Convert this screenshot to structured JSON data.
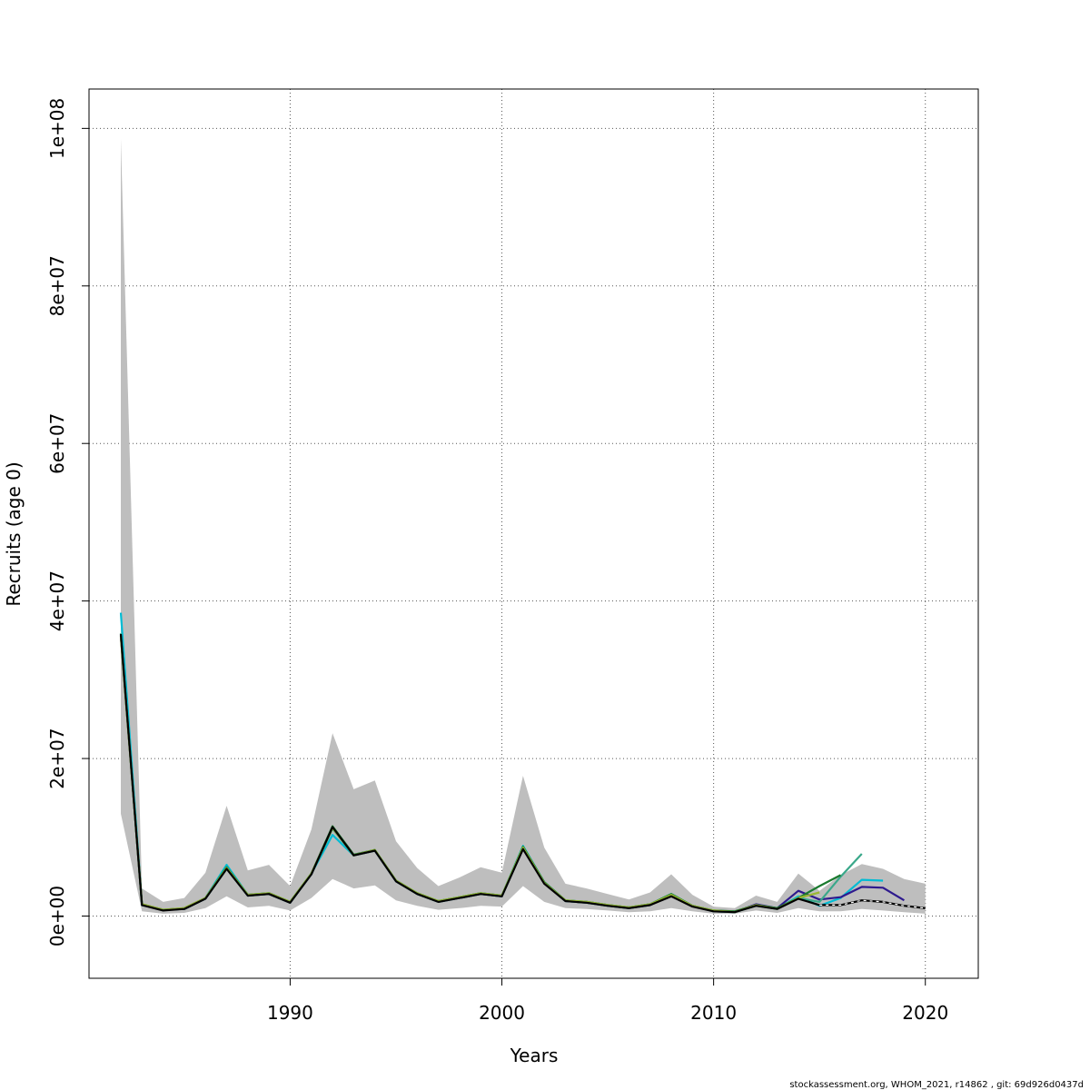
{
  "chart_data": {
    "type": "line",
    "xlabel": "Years",
    "ylabel": "Recruits (age 0)",
    "xlim": [
      1980.5,
      2022.5
    ],
    "ylim": [
      -7900000,
      105000000
    ],
    "x_ticks": [
      1990,
      2000,
      2010,
      2020
    ],
    "x_tick_labels": [
      "1990",
      "2000",
      "2010",
      "2020"
    ],
    "y_ticks": [
      0,
      20000000,
      40000000,
      60000000,
      80000000,
      100000000
    ],
    "y_tick_labels": [
      "0e+00",
      "2e+07",
      "4e+07",
      "6e+07",
      "8e+07",
      "1e+08"
    ],
    "grid": true,
    "confidence_band": {
      "x": [
        1982,
        1983,
        1984,
        1985,
        1986,
        1987,
        1988,
        1989,
        1990,
        1991,
        1992,
        1993,
        1994,
        1995,
        1996,
        1997,
        1998,
        1999,
        2000,
        2001,
        2002,
        2003,
        2004,
        2005,
        2006,
        2007,
        2008,
        2009,
        2010,
        2011,
        2012,
        2013,
        2014,
        2015,
        2016,
        2017,
        2018,
        2019,
        2020
      ],
      "lower": [
        13000000,
        600000,
        300000,
        400000,
        1000000,
        2500000,
        1100000,
        1300000,
        700000,
        2300000,
        4700000,
        3500000,
        3900000,
        2000000,
        1300000,
        800000,
        1000000,
        1300000,
        1200000,
        3800000,
        1800000,
        1000000,
        900000,
        700000,
        500000,
        600000,
        1000000,
        600000,
        300000,
        300000,
        700000,
        400000,
        1000000,
        600000,
        600000,
        900000,
        700000,
        500000,
        300000
      ],
      "upper": [
        98700000,
        3500000,
        1800000,
        2300000,
        5500000,
        14000000,
        5800000,
        6500000,
        3800000,
        11000000,
        23200000,
        16100000,
        17200000,
        9500000,
        6100000,
        3800000,
        4900000,
        6200000,
        5500000,
        17800000,
        8700000,
        4100000,
        3500000,
        2800000,
        2100000,
        3000000,
        5300000,
        2700000,
        1200000,
        1000000,
        2600000,
        1800000,
        5400000,
        3200000,
        5200000,
        6600000,
        6000000,
        4700000,
        4100000
      ]
    },
    "series": [
      {
        "color": "#000000",
        "x": [
          1982,
          1983,
          1984,
          1985,
          1986,
          1987,
          1988,
          1989,
          1990,
          1991,
          1992,
          1993,
          1994,
          1995,
          1996,
          1997,
          1998,
          1999,
          2000,
          2001,
          2002,
          2003,
          2004,
          2005,
          2006,
          2007,
          2008,
          2009,
          2010,
          2011,
          2012,
          2013,
          2014,
          2015,
          2016,
          2017,
          2018,
          2019,
          2020
        ],
        "y": [
          35800000,
          1400000,
          700000,
          900000,
          2200000,
          6000000,
          2600000,
          2800000,
          1700000,
          5300000,
          11300000,
          7700000,
          8300000,
          4400000,
          2800000,
          1800000,
          2300000,
          2800000,
          2500000,
          8500000,
          4100000,
          1900000,
          1700000,
          1300000,
          1000000,
          1400000,
          2500000,
          1200000,
          600000,
          500000,
          1300000,
          900000,
          2200000,
          1400000,
          1400000,
          2000000,
          1800000,
          1300000,
          1000000
        ]
      },
      {
        "color": "#00bcd4",
        "x": [
          1982,
          1983,
          1984,
          1985,
          1986,
          1987,
          1988,
          1989,
          1990,
          1991,
          1992,
          1993,
          1994,
          1995,
          1996,
          1997,
          1998,
          1999,
          2000,
          2001,
          2002,
          2003,
          2004,
          2005,
          2006,
          2007,
          2008,
          2009,
          2010,
          2011,
          2012,
          2013,
          2014,
          2015,
          2016,
          2017,
          2018
        ],
        "y": [
          38500000,
          1400000,
          800000,
          900000,
          2300000,
          6500000,
          2700000,
          2900000,
          1800000,
          5400000,
          10300000,
          7700000,
          8400000,
          4500000,
          2900000,
          1900000,
          2400000,
          2900000,
          2600000,
          8900000,
          4300000,
          2000000,
          1800000,
          1400000,
          1100000,
          1500000,
          2800000,
          1300000,
          700000,
          500000,
          1400000,
          900000,
          2500000,
          1300000,
          2300000,
          4600000,
          4500000
        ]
      },
      {
        "color": "#2e1a8e",
        "x": [
          1982,
          1983,
          1984,
          1985,
          1986,
          1987,
          1988,
          1989,
          1990,
          1991,
          1992,
          1993,
          1994,
          1995,
          1996,
          1997,
          1998,
          1999,
          2000,
          2001,
          2002,
          2003,
          2004,
          2005,
          2006,
          2007,
          2008,
          2009,
          2010,
          2011,
          2012,
          2013,
          2014,
          2015,
          2016,
          2017,
          2018,
          2019
        ],
        "y": [
          35700000,
          1400000,
          800000,
          900000,
          2200000,
          6100000,
          2600000,
          2800000,
          1700000,
          5300000,
          11200000,
          7700000,
          8300000,
          4400000,
          2800000,
          1800000,
          2300000,
          2800000,
          2500000,
          8600000,
          4200000,
          1900000,
          1700000,
          1300000,
          1000000,
          1400000,
          2600000,
          1300000,
          600000,
          500000,
          1500000,
          1000000,
          3200000,
          2100000,
          2400000,
          3700000,
          3600000,
          2000000
        ]
      },
      {
        "color": "#3aa88a",
        "x": [
          1982,
          1983,
          1984,
          1985,
          1986,
          1987,
          1988,
          1989,
          1990,
          1991,
          1992,
          1993,
          1994,
          1995,
          1996,
          1997,
          1998,
          1999,
          2000,
          2001,
          2002,
          2003,
          2004,
          2005,
          2006,
          2007,
          2008,
          2009,
          2010,
          2011,
          2012,
          2013,
          2014,
          2015,
          2016,
          2017
        ],
        "y": [
          35900000,
          1400000,
          800000,
          900000,
          2200000,
          6000000,
          2600000,
          2800000,
          1700000,
          5300000,
          11100000,
          7700000,
          8300000,
          4400000,
          2800000,
          1800000,
          2300000,
          2800000,
          2500000,
          8600000,
          4200000,
          1900000,
          1700000,
          1300000,
          1000000,
          1400000,
          2700000,
          1300000,
          600000,
          500000,
          1300000,
          900000,
          2300000,
          1800000,
          5000000,
          7900000
        ]
      },
      {
        "color": "#1a7a2e",
        "x": [
          1982,
          1983,
          1984,
          1985,
          1986,
          1987,
          1988,
          1989,
          1990,
          1991,
          1992,
          1993,
          1994,
          1995,
          1996,
          1997,
          1998,
          1999,
          2000,
          2001,
          2002,
          2003,
          2004,
          2005,
          2006,
          2007,
          2008,
          2009,
          2010,
          2011,
          2012,
          2013,
          2014,
          2015,
          2016
        ],
        "y": [
          35600000,
          1500000,
          800000,
          1000000,
          2300000,
          6200000,
          2700000,
          2900000,
          1800000,
          5400000,
          11400000,
          7800000,
          8400000,
          4500000,
          2900000,
          1900000,
          2400000,
          2900000,
          2600000,
          8800000,
          4300000,
          2000000,
          1800000,
          1400000,
          1100000,
          1500000,
          2800000,
          1300000,
          700000,
          600000,
          1400000,
          1000000,
          2300000,
          3800000,
          5200000
        ]
      },
      {
        "color": "#9ab832",
        "x": [
          1982,
          1983,
          1984,
          1985,
          1986,
          1987,
          1988,
          1989,
          1990,
          1991,
          1992,
          1993,
          1994,
          1995,
          1996,
          1997,
          1998,
          1999,
          2000,
          2001,
          2002,
          2003,
          2004,
          2005,
          2006,
          2007,
          2008,
          2009,
          2010,
          2011,
          2012,
          2013,
          2014,
          2015
        ],
        "y": [
          35500000,
          1500000,
          800000,
          1000000,
          2300000,
          6100000,
          2700000,
          2900000,
          1800000,
          5400000,
          11200000,
          7700000,
          8400000,
          4500000,
          2900000,
          1900000,
          2400000,
          2900000,
          2600000,
          8700000,
          4200000,
          2000000,
          1800000,
          1400000,
          1100000,
          1500000,
          2700000,
          1300000,
          700000,
          500000,
          1400000,
          900000,
          2300000,
          3000000
        ]
      }
    ],
    "annotation": "stockassessment.org, WHOM_2021, r14862 , git: 69d926d0437d"
  }
}
